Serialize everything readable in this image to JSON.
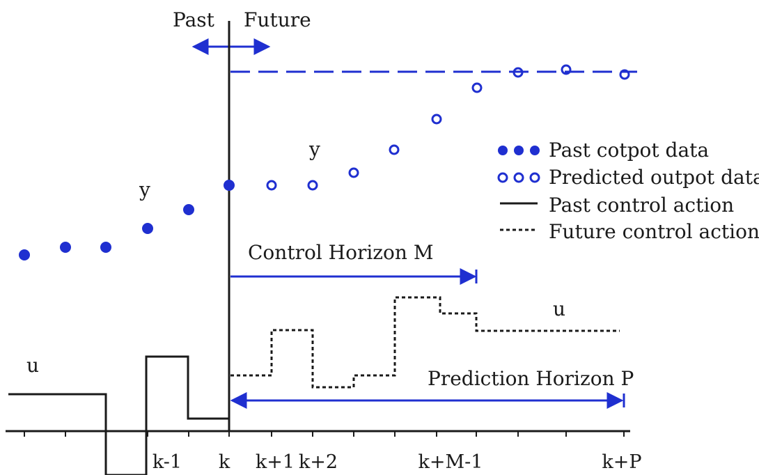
{
  "header": {
    "past": "Past",
    "future": "Future"
  },
  "output_labels": {
    "y_past": "y",
    "y_future": "y"
  },
  "input_labels": {
    "u_past": "u",
    "u_future": "u"
  },
  "horizons": {
    "control": "Control Horizon M",
    "prediction": "Prediction Horizon P"
  },
  "legend": [
    {
      "symbol": "●●●",
      "label": "Past cotpot data"
    },
    {
      "symbol": "○○○",
      "label": "Predicted outpot data"
    },
    {
      "symbol": "solid-line",
      "label": "Past control action"
    },
    {
      "symbol": "dotted-line",
      "label": "Future control action"
    }
  ],
  "ticks": [
    "k-1",
    "k",
    "k+1",
    "k+2",
    "k+M-1",
    "k+P"
  ],
  "colors": {
    "blue": "#1f2fd0",
    "black": "#1a1a1a"
  }
}
